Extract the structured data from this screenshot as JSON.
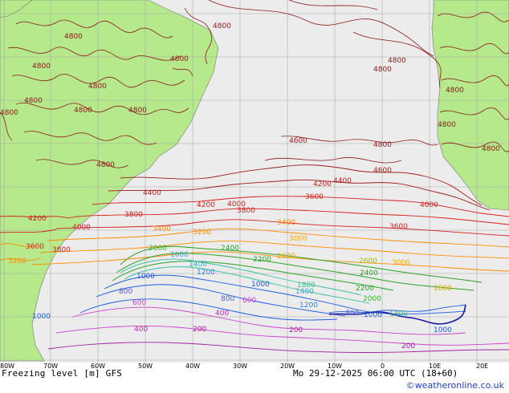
{
  "title": "Freezing level [m] GFS",
  "datetime": "Mo 29-12-2025 06:00 UTC (18+60)",
  "credit": "©weatheronline.co.uk",
  "lon_labels": [
    "80W",
    "70W",
    "60W",
    "50W",
    "40W",
    "30W",
    "20W",
    "10W",
    "0",
    "10E",
    "20E"
  ],
  "contour_labels": {
    "land_4800": [
      "4800",
      "4800",
      "4800",
      "4800",
      "4800",
      "4800",
      "4800",
      "4800",
      "4800",
      "4800",
      "4800",
      "4800",
      "4800",
      "4800",
      "4800",
      "4800"
    ],
    "levels": [
      "4600",
      "4400",
      "4200",
      "4000",
      "3800",
      "3600",
      "3400",
      "3200",
      "3000",
      "2800",
      "2600",
      "2400",
      "2200",
      "2000",
      "1800",
      "1600",
      "1400",
      "1200",
      "1000",
      "800",
      "600",
      "400",
      "200"
    ]
  },
  "colors": {
    "land": "#b6e88c",
    "ocean": "#ececec",
    "grid": "#a0a0a0",
    "c4800": "#8b1a1a",
    "c4000": "#c81e1e",
    "c3200": "#ff8c00",
    "c2400": "#2aa22a",
    "c1600": "#33bb33",
    "c1000": "#1e5adc",
    "c600": "#cc44cc",
    "c200": "#a020a0"
  }
}
